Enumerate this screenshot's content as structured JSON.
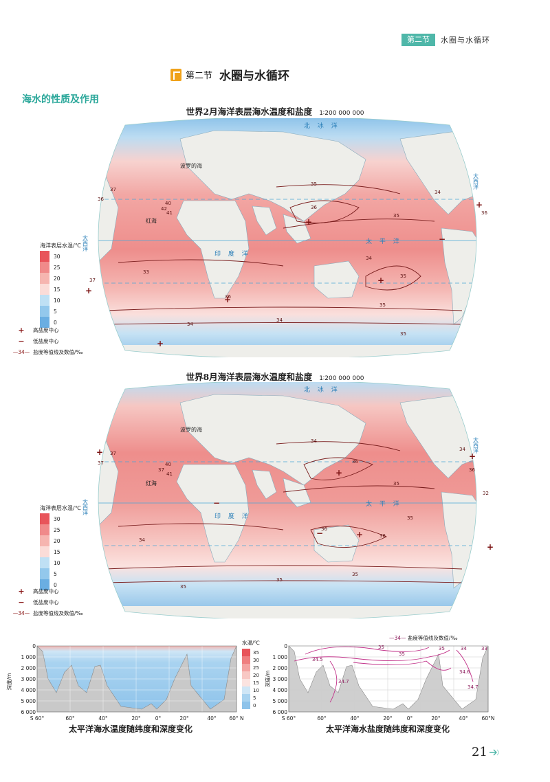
{
  "header": {
    "tag": "第二节",
    "title": "水圈与水循环"
  },
  "section": {
    "number": "第二节",
    "name": "水圈与水循环"
  },
  "subheading": "海水的性质及作用",
  "map_feb": {
    "title": "世界2月海洋表层海水温度和盐度",
    "scale": "1∶200 000 000",
    "labels": {
      "baltic": "波罗的海",
      "red_sea": "红海",
      "pacific": "太  平  洋",
      "indian": "印  度  洋",
      "atlantic_w": "大西洋",
      "atlantic_e": "大西洋",
      "arctic": "北  冰  洋"
    },
    "salinity_values": [
      "35",
      "35",
      "34",
      "36",
      "35",
      "36",
      "37",
      "33",
      "34",
      "35",
      "36",
      "37",
      "40",
      "41",
      "42",
      "36",
      "34",
      "34",
      "35"
    ]
  },
  "map_aug": {
    "title": "世界8月海洋表层海水温度和盐度",
    "scale": "1∶200 000 000",
    "labels": {
      "baltic": "波罗的海",
      "red_sea": "红海",
      "pacific": "太  平  洋",
      "indian": "印  度  洋",
      "atlantic_w": "大西洋",
      "atlantic_e": "大西洋",
      "arctic": "北  冰  洋"
    },
    "salinity_values": [
      "34",
      "35",
      "36",
      "35",
      "34",
      "36",
      "35",
      "37",
      "32",
      "36",
      "37",
      "40",
      "41",
      "37",
      "35",
      "34",
      "35",
      "36"
    ]
  },
  "temp_legend": {
    "title": "海洋表层水温/℃",
    "values": [
      "30",
      "25",
      "20",
      "15",
      "10",
      "5",
      "0"
    ],
    "colors": [
      "#e8545a",
      "#f08a8a",
      "#f6b5b0",
      "#fbdcd8",
      "#bfe0f4",
      "#93c8ec",
      "#6aaee2"
    ]
  },
  "symbol_legend": {
    "high": "高盐度中心",
    "low": "低盐度中心",
    "isoline": "盐度等值线及数值/‰",
    "isoline_sample": "34"
  },
  "chart_temp": {
    "caption": "太平洋海水温度随纬度和深度变化",
    "legend_title": "水温/℃",
    "legend_values": [
      "35",
      "30",
      "25",
      "20",
      "15",
      "10",
      "5",
      "0"
    ],
    "y_label": "深度/m",
    "y_ticks": [
      "0",
      "1 000",
      "2 000",
      "3 000",
      "4 000",
      "5 000",
      "6 000"
    ],
    "x_ticks": [
      "S 60°",
      "60°",
      "40°",
      "20°",
      "0°",
      "20°",
      "40°",
      "60° N"
    ]
  },
  "chart_sal": {
    "caption": "太平洋海水盐度随纬度和深度变化",
    "legend": "盐度等值线及数值/‰",
    "legend_sample": "34",
    "y_label": "深度/m",
    "y_ticks": [
      "0",
      "1 000",
      "2 000",
      "3 000",
      "4 000",
      "5 000",
      "6 000"
    ],
    "x_ticks": [
      "S 60°",
      "60°",
      "40°",
      "20°",
      "0°",
      "20°",
      "40°",
      "60°N"
    ],
    "contour_labels": [
      "35",
      "35",
      "35",
      "34",
      "33",
      "34.5",
      "34.7",
      "34.6",
      "34.7"
    ]
  },
  "page_number": "21"
}
